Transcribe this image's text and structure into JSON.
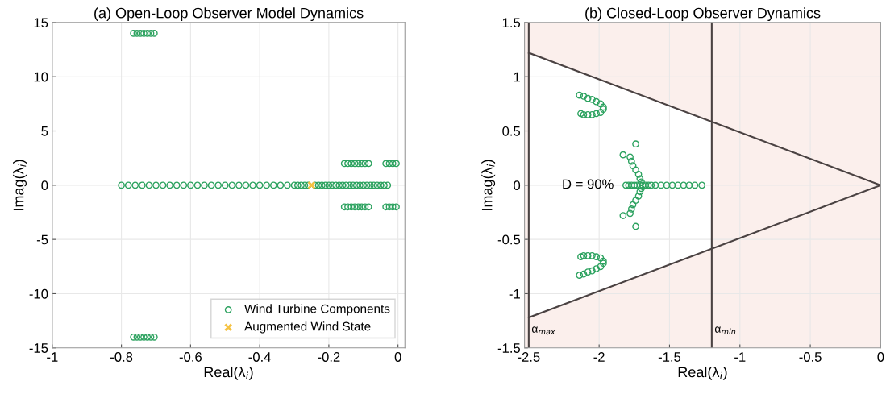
{
  "chart_data": [
    {
      "type": "scatter",
      "title": "(a) Open-Loop Observer Model Dynamics",
      "xlabel": "Real(λ$_{i}$)",
      "ylabel": "Imag(λ$_{i}$)",
      "xlim": [
        -1,
        0.02
      ],
      "ylim": [
        -15,
        15
      ],
      "xticks": [
        -1,
        -0.8,
        -0.6,
        -0.4,
        -0.2,
        0
      ],
      "yticks": [
        -15,
        -10,
        -5,
        0,
        5,
        10,
        15
      ],
      "grid": true,
      "legend": "lower right",
      "series": [
        {
          "name": "Wind Turbine Components",
          "color": "#2ca25f",
          "marker": "circle",
          "x": [
            -0.8,
            -0.78,
            -0.76,
            -0.74,
            -0.72,
            -0.7,
            -0.68,
            -0.66,
            -0.64,
            -0.62,
            -0.6,
            -0.58,
            -0.56,
            -0.54,
            -0.52,
            -0.5,
            -0.48,
            -0.46,
            -0.44,
            -0.42,
            -0.4,
            -0.38,
            -0.36,
            -0.34,
            -0.32,
            -0.3,
            -0.29,
            -0.28,
            -0.27,
            -0.26,
            -0.24,
            -0.23,
            -0.22,
            -0.21,
            -0.2,
            -0.19,
            -0.18,
            -0.17,
            -0.16,
            -0.15,
            -0.14,
            -0.13,
            -0.12,
            -0.11,
            -0.1,
            -0.09,
            -0.08,
            -0.07,
            -0.06,
            -0.05,
            -0.04,
            -0.03,
            -0.765,
            -0.755,
            -0.745,
            -0.735,
            -0.725,
            -0.715,
            -0.705,
            -0.765,
            -0.755,
            -0.745,
            -0.735,
            -0.725,
            -0.715,
            -0.705,
            -0.155,
            -0.145,
            -0.135,
            -0.125,
            -0.115,
            -0.105,
            -0.095,
            -0.085,
            -0.155,
            -0.145,
            -0.135,
            -0.125,
            -0.115,
            -0.105,
            -0.095,
            -0.085,
            -0.035,
            -0.025,
            -0.015,
            -0.005,
            -0.035,
            -0.025,
            -0.015,
            -0.005
          ],
          "values": [
            0,
            0,
            0,
            0,
            0,
            0,
            0,
            0,
            0,
            0,
            0,
            0,
            0,
            0,
            0,
            0,
            0,
            0,
            0,
            0,
            0,
            0,
            0,
            0,
            0,
            0,
            0,
            0,
            0,
            0,
            0,
            0,
            0,
            0,
            0,
            0,
            0,
            0,
            0,
            0,
            0,
            0,
            0,
            0,
            0,
            0,
            0,
            0,
            0,
            0,
            0,
            0,
            14,
            14,
            14,
            14,
            14,
            14,
            14,
            -14,
            -14,
            -14,
            -14,
            -14,
            -14,
            -14,
            2,
            2,
            2,
            2,
            2,
            2,
            2,
            2,
            -2,
            -2,
            -2,
            -2,
            -2,
            -2,
            -2,
            -2,
            2,
            2,
            2,
            2,
            -2,
            -2,
            -2,
            -2
          ]
        },
        {
          "name": "Augmented Wind State",
          "color": "#f5c242",
          "marker": "cross",
          "x": [
            -0.25
          ],
          "values": [
            0
          ]
        }
      ]
    },
    {
      "type": "scatter",
      "title": "(b) Closed-Loop Observer Dynamics",
      "xlabel": "Real(λ$_{i}$)",
      "ylabel": "Imag(λ$_{i}$)",
      "xlim": [
        -2.53,
        0
      ],
      "ylim": [
        -1.5,
        1.5
      ],
      "xticks": [
        -2.5,
        -2,
        -1.5,
        -1,
        -0.5,
        0
      ],
      "yticks": [
        -1.5,
        -1,
        -0.5,
        0,
        0.5,
        1,
        1.5
      ],
      "grid": true,
      "annotations": [
        "D = 90%"
      ],
      "bands": [
        {
          "axis": "x",
          "from": -2.53,
          "to": -2.5,
          "color": "#fbefec"
        },
        {
          "axis": "x",
          "from": -1.2,
          "to": 0,
          "color": "#fbefec"
        }
      ],
      "ref_lines": [
        {
          "axis": "x",
          "value": -2.5,
          "label": "α$_{max}$",
          "color": "#4a4242"
        },
        {
          "axis": "x",
          "value": -1.2,
          "label": "α$_{min}$",
          "color": "#4a4242"
        }
      ],
      "series": [
        {
          "type": "line",
          "color": "#4a4242",
          "x": [
            -2.5,
            0
          ],
          "values": [
            1.22,
            0
          ],
          "lower": [
            1.22,
            0
          ],
          "upper": [
            1.5,
            1.5
          ]
        },
        {
          "type": "line",
          "color": "#4a4242",
          "x": [
            -2.5,
            0
          ],
          "values": [
            -1.22,
            0
          ],
          "lower": [
            -1.5,
            -1.5
          ],
          "upper": [
            -1.22,
            0
          ]
        },
        {
          "color": "#2ca25f",
          "marker": "circle",
          "x": [
            -2.14,
            -2.11,
            -2.08,
            -2.05,
            -2.02,
            -1.99,
            -1.97,
            -1.97,
            -1.99,
            -2.02,
            -2.05,
            -2.08,
            -2.11,
            -2.13,
            -2.14,
            -2.11,
            -2.08,
            -2.05,
            -2.02,
            -1.99,
            -1.97,
            -1.97,
            -1.99,
            -2.02,
            -2.05,
            -2.08,
            -2.11,
            -2.13,
            -1.81,
            -1.79,
            -1.77,
            -1.75,
            -1.73,
            -1.71,
            -1.69,
            -1.67,
            -1.65,
            -1.63,
            -1.6,
            -1.56,
            -1.52,
            -1.48,
            -1.44,
            -1.4,
            -1.36,
            -1.32,
            -1.27,
            -1.78,
            -1.77,
            -1.76,
            -1.74,
            -1.72,
            -1.71,
            -1.7,
            -1.78,
            -1.77,
            -1.76,
            -1.74,
            -1.72,
            -1.71,
            -1.7,
            -1.83,
            -1.83,
            -1.74,
            -1.74
          ],
          "values": [
            0.83,
            0.82,
            0.8,
            0.79,
            0.77,
            0.75,
            0.72,
            0.7,
            0.67,
            0.66,
            0.65,
            0.65,
            0.65,
            0.66,
            -0.83,
            -0.82,
            -0.8,
            -0.79,
            -0.77,
            -0.75,
            -0.72,
            -0.7,
            -0.67,
            -0.66,
            -0.65,
            -0.65,
            -0.65,
            -0.66,
            0,
            0,
            0,
            0,
            0,
            0,
            0,
            0,
            0,
            0,
            0,
            0,
            0,
            0,
            0,
            0,
            0,
            0,
            0,
            0.26,
            0.22,
            0.18,
            0.14,
            0.1,
            0.06,
            0.03,
            -0.26,
            -0.22,
            -0.18,
            -0.14,
            -0.1,
            -0.06,
            -0.03,
            0.28,
            -0.28,
            0.38,
            -0.38
          ]
        }
      ]
    }
  ]
}
